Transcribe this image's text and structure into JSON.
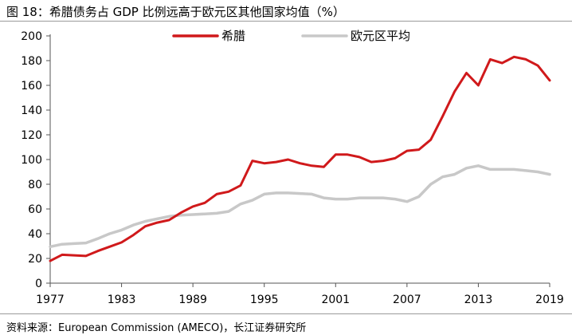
{
  "header": {
    "title": "图 18：希腊债务占 GDP 比例远高于欧元区其他国家均值（%）"
  },
  "footer": {
    "source": "资料来源：European Commission (AMECO)，长江证券研究所"
  },
  "chart_data": {
    "type": "line",
    "title": "",
    "xlabel": "",
    "ylabel": "",
    "xlim": [
      1977,
      2019
    ],
    "ylim": [
      0,
      200
    ],
    "x_ticks": [
      1977,
      1983,
      1989,
      1995,
      2001,
      2007,
      2013,
      2019
    ],
    "y_ticks": [
      0,
      20,
      40,
      60,
      80,
      100,
      120,
      140,
      160,
      180,
      200
    ],
    "grid": false,
    "legend_position": "top",
    "series": [
      {
        "name": "希腊",
        "color": "#d0191b",
        "x": [
          1977,
          1978,
          1979,
          1980,
          1981,
          1982,
          1983,
          1984,
          1985,
          1986,
          1987,
          1988,
          1989,
          1990,
          1991,
          1992,
          1993,
          1994,
          1995,
          1996,
          1997,
          1998,
          1999,
          2000,
          2001,
          2002,
          2003,
          2004,
          2005,
          2006,
          2007,
          2008,
          2009,
          2010,
          2011,
          2012,
          2013,
          2014,
          2015,
          2016,
          2017,
          2018,
          2019
        ],
        "values": [
          18,
          23,
          22.5,
          22,
          26,
          29.5,
          33,
          39,
          46,
          49,
          51,
          57,
          62,
          65,
          72,
          74,
          79,
          99,
          97,
          98,
          100,
          97,
          95,
          94,
          104,
          104,
          102,
          98,
          99,
          101,
          107,
          108,
          116,
          135,
          155,
          170,
          160,
          181,
          178,
          183,
          181,
          176,
          164
        ]
      },
      {
        "name": "欧元区平均",
        "color": "#c8c8c8",
        "x": [
          1977,
          1978,
          1979,
          1980,
          1981,
          1982,
          1983,
          1984,
          1985,
          1986,
          1987,
          1988,
          1989,
          1990,
          1991,
          1992,
          1993,
          1994,
          1995,
          1996,
          1997,
          1998,
          1999,
          2000,
          2001,
          2002,
          2003,
          2004,
          2005,
          2006,
          2007,
          2008,
          2009,
          2010,
          2011,
          2012,
          2013,
          2014,
          2015,
          2016,
          2017,
          2018,
          2019
        ],
        "values": [
          29.5,
          31.5,
          32,
          32.5,
          36,
          40,
          43,
          47,
          50,
          52,
          54,
          55,
          55.5,
          56,
          56.5,
          58,
          64,
          67,
          72,
          73,
          73,
          72.5,
          72,
          69,
          68,
          68,
          69,
          69,
          69,
          68,
          66,
          70,
          80,
          86,
          88,
          93,
          95,
          92,
          92,
          92,
          91,
          90,
          88
        ]
      }
    ]
  }
}
